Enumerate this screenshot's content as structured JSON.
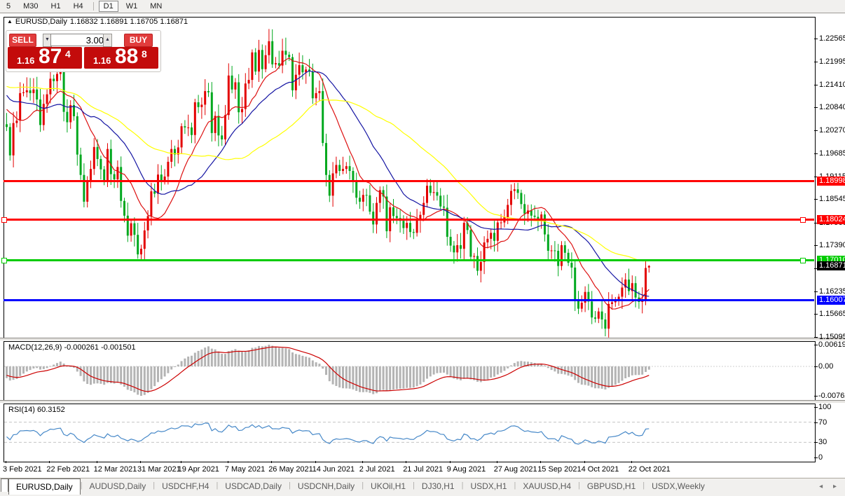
{
  "toolbar": {
    "periods": [
      "5",
      "M30",
      "H1",
      "H4",
      "D1",
      "W1",
      "MN"
    ],
    "active": "D1"
  },
  "chart_header": {
    "arrow": "▲",
    "symbol": "EURUSD,Daily",
    "ohlc_text": "1.16832 1.16891 1.16705 1.16871"
  },
  "one_click": {
    "sell_label": "SELL",
    "buy_label": "BUY",
    "volume": "3.00",
    "volume_down_icon": "▼",
    "volume_up_icon": "▲",
    "bid": {
      "prefix": "1.16",
      "big": "87",
      "sup": "4"
    },
    "ask": {
      "prefix": "1.16",
      "big": "88",
      "sup": "8"
    },
    "panel_red": "#c30b0b",
    "button_red": "#e13c3c"
  },
  "price_axis": {
    "ticks": [
      "1.22565",
      "1.21995",
      "1.21410",
      "1.20840",
      "1.20270",
      "1.19685",
      "1.19115",
      "1.18545",
      "1.17960",
      "1.17390",
      "1.16820",
      "1.16235",
      "1.15665",
      "1.15095"
    ]
  },
  "levels": [
    {
      "text": "1.18998",
      "value": 1.18998,
      "color": "#ff0000",
      "text_color": "#ffffff",
      "handles": false
    },
    {
      "text": "1.18024",
      "value": 1.18024,
      "color": "#ff0000",
      "text_color": "#ffffff",
      "handles": true
    },
    {
      "text": "1.17010",
      "value": 1.1701,
      "color": "#00cc00",
      "text_color": "#ffffff",
      "handles": true
    },
    {
      "text": "1.16007",
      "value": 1.16007,
      "color": "#0000ff",
      "text_color": "#ffffff",
      "handles": false
    }
  ],
  "current_price": {
    "text": "1.16871",
    "value": 1.16871,
    "bg": "#000000",
    "text_color": "#ffffff"
  },
  "macd_panel": {
    "label": "MACD(12,26,9) -0.000261 -0.001501",
    "axis_max": "0.006193",
    "axis_zero": "0.00",
    "axis_min": "-0.00762",
    "histogram_color": "#b4b4b4",
    "signal_color": "#cc0000"
  },
  "rsi_panel": {
    "label": "RSI(14) 60.3152",
    "axis": [
      "100",
      "70",
      "30",
      "0"
    ],
    "guides": [
      70,
      30
    ],
    "line_color": "#4688c8"
  },
  "date_axis": {
    "labels": [
      {
        "text": "3 Feb 2021",
        "i": 0
      },
      {
        "text": "22 Feb 2021",
        "i": 13
      },
      {
        "text": "12 Mar 2021",
        "i": 27
      },
      {
        "text": "31 Mar 2021",
        "i": 40
      },
      {
        "text": "19 Apr 2021",
        "i": 52
      },
      {
        "text": "7 May 2021",
        "i": 66
      },
      {
        "text": "26 May 2021",
        "i": 79
      },
      {
        "text": "14 Jun 2021",
        "i": 92
      },
      {
        "text": "2 Jul 2021",
        "i": 106
      },
      {
        "text": "21 Jul 2021",
        "i": 119
      },
      {
        "text": "9 Aug 2021",
        "i": 132
      },
      {
        "text": "27 Aug 2021",
        "i": 146
      },
      {
        "text": "15 Sep 2021",
        "i": 159
      },
      {
        "text": "4 Oct 2021",
        "i": 172
      },
      {
        "text": "22 Oct 2021",
        "i": 186
      }
    ]
  },
  "tabs": {
    "items": [
      "EURUSD,Daily",
      "AUDUSD,Daily",
      "USDCHF,H4",
      "USDCAD,Daily",
      "USDCNH,Daily",
      "UKOil,H1",
      "DJ30,H1",
      "USDX,H1",
      "XAUUSD,H4",
      "GBPUSD,H1",
      "USDX,Weekly"
    ],
    "active": "EURUSD,Daily",
    "scroll_icons": "◂ ▸"
  },
  "chart_data": {
    "type": "candlestick",
    "symbol": "EURUSD",
    "timeframe": "Daily",
    "bull_color": "#e30000",
    "bear_color": "#00a81e",
    "note": "template colors bullish candles red, bearish green",
    "current_bar": {
      "open": 1.16832,
      "high": 1.16891,
      "low": 1.16705,
      "close": 1.16871
    },
    "first_open": 1.2042,
    "warmup_closes": [
      1.2155,
      1.214,
      1.212,
      1.208,
      1.211,
      1.214,
      1.21,
      1.2065,
      1.204,
      1.2075,
      1.211,
      1.213,
      1.2152,
      1.2128,
      1.214,
      1.212,
      1.216,
      1.2122,
      1.211,
      1.2155,
      1.217,
      1.225,
      1.227,
      1.2225,
      1.2162,
      1.2155,
      1.2158,
      1.22,
      1.2255,
      1.228,
      1.2245,
      1.2228,
      1.216,
      1.208,
      1.2124,
      1.2165,
      1.217,
      1.2135,
      1.216,
      1.2175,
      1.2176,
      1.2165,
      1.2085,
      1.209,
      1.2063,
      1.2113,
      1.2165,
      1.217,
      1.2119,
      1.208,
      1.2032,
      1.2015,
      1.2044,
      1.208,
      1.2036
    ],
    "closes": [
      1.2035,
      1.1964,
      1.2045,
      1.2051,
      1.212,
      1.2122,
      1.2127,
      1.212,
      1.2129,
      1.2104,
      1.204,
      1.2093,
      1.2117,
      1.2156,
      1.215,
      1.2168,
      1.2175,
      1.2073,
      1.2047,
      1.209,
      1.2062,
      1.1966,
      1.1915,
      1.1848,
      1.1899,
      1.193,
      1.1985,
      1.1955,
      1.1929,
      1.19,
      1.198,
      1.1917,
      1.1904,
      1.1935,
      1.185,
      1.1813,
      1.1763,
      1.1794,
      1.1765,
      1.1716,
      1.173,
      1.1776,
      1.1812,
      1.1874,
      1.1868,
      1.1916,
      1.19,
      1.1911,
      1.1948,
      1.198,
      1.1966,
      1.1984,
      1.2037,
      1.2034,
      1.2034,
      1.2015,
      1.2097,
      1.2085,
      1.2091,
      1.2125,
      1.2122,
      1.202,
      1.2063,
      1.2014,
      1.2004,
      1.2065,
      1.2164,
      1.2129,
      1.2147,
      1.2072,
      1.208,
      1.2144,
      1.2153,
      1.2222,
      1.2174,
      1.2228,
      1.218,
      1.2215,
      1.225,
      1.2192,
      1.2195,
      1.2189,
      1.2226,
      1.2216,
      1.221,
      1.2127,
      1.2166,
      1.219,
      1.2172,
      1.2179,
      1.2174,
      1.2107,
      1.212,
      1.2125,
      1.1995,
      1.1915,
      1.1863,
      1.1919,
      1.194,
      1.1925,
      1.193,
      1.1937,
      1.1925,
      1.1898,
      1.1858,
      1.1848,
      1.1865,
      1.1864,
      1.1823,
      1.1791,
      1.1845,
      1.1877,
      1.1861,
      1.1774,
      1.1834,
      1.1812,
      1.1807,
      1.18,
      1.1782,
      1.1795,
      1.1772,
      1.177,
      1.1801,
      1.1815,
      1.1845,
      1.1888,
      1.187,
      1.1872,
      1.1863,
      1.1836,
      1.1833,
      1.176,
      1.1738,
      1.1721,
      1.1739,
      1.173,
      1.1795,
      1.1777,
      1.171,
      1.1712,
      1.1675,
      1.1697,
      1.1746,
      1.1755,
      1.177,
      1.175,
      1.1796,
      1.1796,
      1.1809,
      1.184,
      1.1875,
      1.1879,
      1.187,
      1.1842,
      1.1818,
      1.1826,
      1.1813,
      1.181,
      1.1805,
      1.1816,
      1.1766,
      1.1725,
      1.1726,
      1.1725,
      1.1687,
      1.1739,
      1.172,
      1.1695,
      1.1683,
      1.1599,
      1.158,
      1.1595,
      1.1622,
      1.1598,
      1.1558,
      1.1555,
      1.1573,
      1.1553,
      1.153,
      1.1592,
      1.1596,
      1.1601,
      1.161,
      1.1633,
      1.1653,
      1.1624,
      1.1644,
      1.1608,
      1.1597,
      1.1603,
      1.1682,
      1.16871
    ],
    "ma_overlays": [
      {
        "name": "MA-fast",
        "period": 12,
        "color": "#dd1111"
      },
      {
        "name": "MA-mid",
        "period": 25,
        "color": "#1515a3"
      },
      {
        "name": "MA-slow",
        "period": 50,
        "color": "#ffff00"
      }
    ],
    "macd": {
      "fast": 12,
      "slow": 26,
      "signal": 9,
      "value": -0.000261,
      "signal_value": -0.001501
    },
    "rsi": {
      "period": 14,
      "value": 60.3152
    },
    "ylim": [
      1.1508,
      1.231
    ]
  }
}
